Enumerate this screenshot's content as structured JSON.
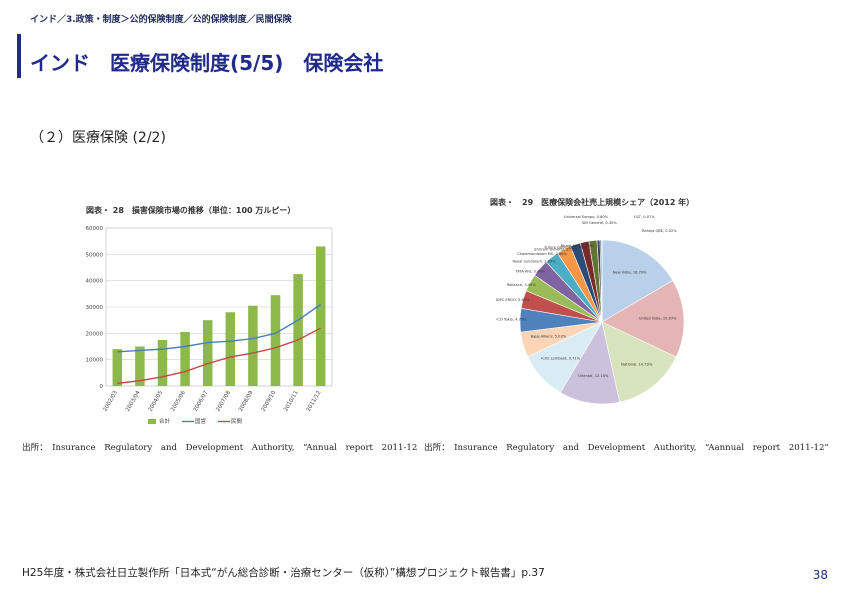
{
  "breadcrumb": "インド／3.政策・制度＞公的保険制度／公的保険制度／民間保険",
  "page_title": "インド　医療保険制度(5/5)　保険会社",
  "section_heading": "（２）医療保険 (2/2)",
  "footer_text": "H25年度・株式会社日立製作所「日本式“がん総合診断・治療センター（仮称）”構想プロジェクト報告書」p.37",
  "page_number": "38",
  "colors": {
    "accent": "#1f2a8a",
    "bar": "#8db84a",
    "public": "#4a7ebb",
    "private": "#be4b48"
  },
  "chart_data": [
    {
      "type": "bar",
      "title": "図表・ 28　損害保険市場の推移（単位：100 万ルピー）",
      "categories": [
        "2002/03",
        "2003/04",
        "2004/05",
        "2005/06",
        "2006/07",
        "2007/08",
        "2008/09",
        "2009/10",
        "2010/11",
        "2011/12"
      ],
      "series": [
        {
          "name": "合計",
          "type": "bar",
          "values": [
            14000,
            15000,
            17500,
            20500,
            25000,
            28000,
            30500,
            34500,
            42500,
            53000
          ]
        },
        {
          "name": "国営",
          "type": "line",
          "values": [
            13000,
            13500,
            14000,
            15000,
            16500,
            17000,
            18000,
            20000,
            25000,
            31000
          ]
        },
        {
          "name": "民間",
          "type": "line",
          "values": [
            1000,
            2000,
            3500,
            5500,
            8500,
            11000,
            12500,
            14500,
            17500,
            22000
          ]
        }
      ],
      "yticks": [
        "0",
        "10000",
        "20000",
        "30000",
        "40000",
        "50000",
        "60000"
      ],
      "ylim": [
        0,
        60000
      ],
      "grid": true,
      "legend": "bottom",
      "source": "出所：　Insurance　Regulatory　and　Development　Authority,　“Annual　report　2011-12"
    },
    {
      "type": "pie",
      "title": "図表・　29　医療保険会社売上規模シェア（2012 年）",
      "slices": [
        {
          "label": "New India",
          "pct": "16.79%",
          "value": 16.79,
          "color": "#b9d0ea"
        },
        {
          "label": "United India",
          "pct": "15.67%",
          "value": 15.67,
          "color": "#e4b5b4"
        },
        {
          "label": "National",
          "pct": "14.73%",
          "value": 14.73,
          "color": "#d7e3bc"
        },
        {
          "label": "Oriental",
          "pct": "12.10%",
          "value": 12.1,
          "color": "#ccc1dc"
        },
        {
          "label": "ICICI Lombard",
          "pct": "9.71%",
          "value": 9.71,
          "color": "#d9ecf4"
        },
        {
          "label": "Bajaj Allianz",
          "pct": "5.03%",
          "value": 5.03,
          "color": "#fbd5b5"
        },
        {
          "label": "IFFCO Tokio",
          "pct": "4.70%",
          "value": 4.7,
          "color": "#4f81bd"
        },
        {
          "label": "HDFC ERGO",
          "pct": "3.60%",
          "value": 3.6,
          "color": "#c0504d"
        },
        {
          "label": "Reliance",
          "pct": "3.49%",
          "value": 3.49,
          "color": "#9bbb59"
        },
        {
          "label": "TATA AIG",
          "pct": "3.46%",
          "value": 3.46,
          "color": "#8064a2"
        },
        {
          "label": "Royal Sundaram",
          "pct": "2.85%",
          "value": 2.85,
          "color": "#4bacc6"
        },
        {
          "label": "Cholamandalam MS",
          "pct": "2.86%",
          "value": 2.86,
          "color": "#f79646"
        },
        {
          "label": "Shriram General",
          "pct": "2.05%",
          "value": 2.05,
          "color": "#2c4d75"
        },
        {
          "label": "Future Generali",
          "pct": "1.74%",
          "value": 1.74,
          "color": "#772c2a"
        },
        {
          "label": "Bharti AXA",
          "pct": "1.60%",
          "value": 1.6,
          "color": "#5f7530"
        },
        {
          "label": "Universal Sompo",
          "pct": "0.60%",
          "value": 0.6,
          "color": "#4d3b62"
        },
        {
          "label": "SBI General",
          "pct": "0.30%",
          "value": 0.3,
          "color": "#276a7c"
        },
        {
          "label": "L&T",
          "pct": "0.07%",
          "value": 0.07,
          "color": "#b65708"
        },
        {
          "label": "Raheja QBE",
          "pct": "0.02%",
          "value": 0.02,
          "color": "#729aca"
        }
      ],
      "source": "出所：　Insurance　Regulatory　and　Development　Authority,　“Aannual　report　2011-12”"
    }
  ]
}
